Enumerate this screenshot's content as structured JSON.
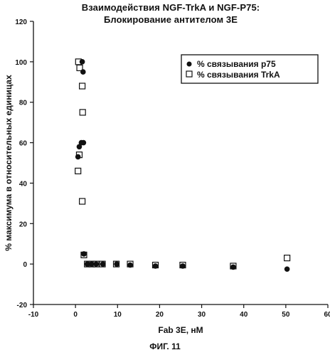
{
  "title_line1": "Взаимодействия NGF-TrkA и NGF-P75:",
  "title_line2": "Блокирование антителом 3E",
  "figure_caption": "ФИГ. 11",
  "chart_data": {
    "type": "scatter",
    "xlabel": "Fab 3E, нМ",
    "ylabel": "% максимума в относительных единицах",
    "xlim": [
      -10,
      60
    ],
    "ylim": [
      -20,
      120
    ],
    "xticks": [
      -10,
      0,
      10,
      20,
      30,
      40,
      50,
      60
    ],
    "yticks": [
      -20,
      0,
      20,
      40,
      60,
      80,
      100,
      120
    ],
    "grid": false,
    "legend_position": "top-right",
    "series": [
      {
        "name": "% связывания p75",
        "marker": "filled-circle",
        "points": [
          [
            1.6,
            100
          ],
          [
            1.8,
            95
          ],
          [
            1.9,
            60
          ],
          [
            1.4,
            60
          ],
          [
            0.9,
            58
          ],
          [
            0.6,
            53
          ],
          [
            2.0,
            5
          ],
          [
            2.8,
            0
          ],
          [
            3.8,
            0
          ],
          [
            4.9,
            0
          ],
          [
            6.5,
            0
          ],
          [
            9.8,
            0
          ],
          [
            13,
            -0.5
          ],
          [
            19,
            -1
          ],
          [
            25.5,
            -1
          ],
          [
            37.5,
            -1.5
          ],
          [
            50.3,
            -2.5
          ]
        ]
      },
      {
        "name": "% связывания TrkA",
        "marker": "open-square",
        "points": [
          [
            0.7,
            100
          ],
          [
            1.0,
            97
          ],
          [
            1.6,
            88
          ],
          [
            1.7,
            75
          ],
          [
            0.9,
            54
          ],
          [
            0.6,
            46
          ],
          [
            1.6,
            31
          ],
          [
            2.0,
            4.5
          ],
          [
            2.8,
            0
          ],
          [
            3.9,
            0
          ],
          [
            4.9,
            0
          ],
          [
            6.4,
            0
          ],
          [
            9.7,
            0
          ],
          [
            13,
            0
          ],
          [
            19,
            -0.5
          ],
          [
            25.5,
            -0.5
          ],
          [
            37.5,
            -1
          ],
          [
            50.3,
            3
          ]
        ]
      }
    ]
  }
}
